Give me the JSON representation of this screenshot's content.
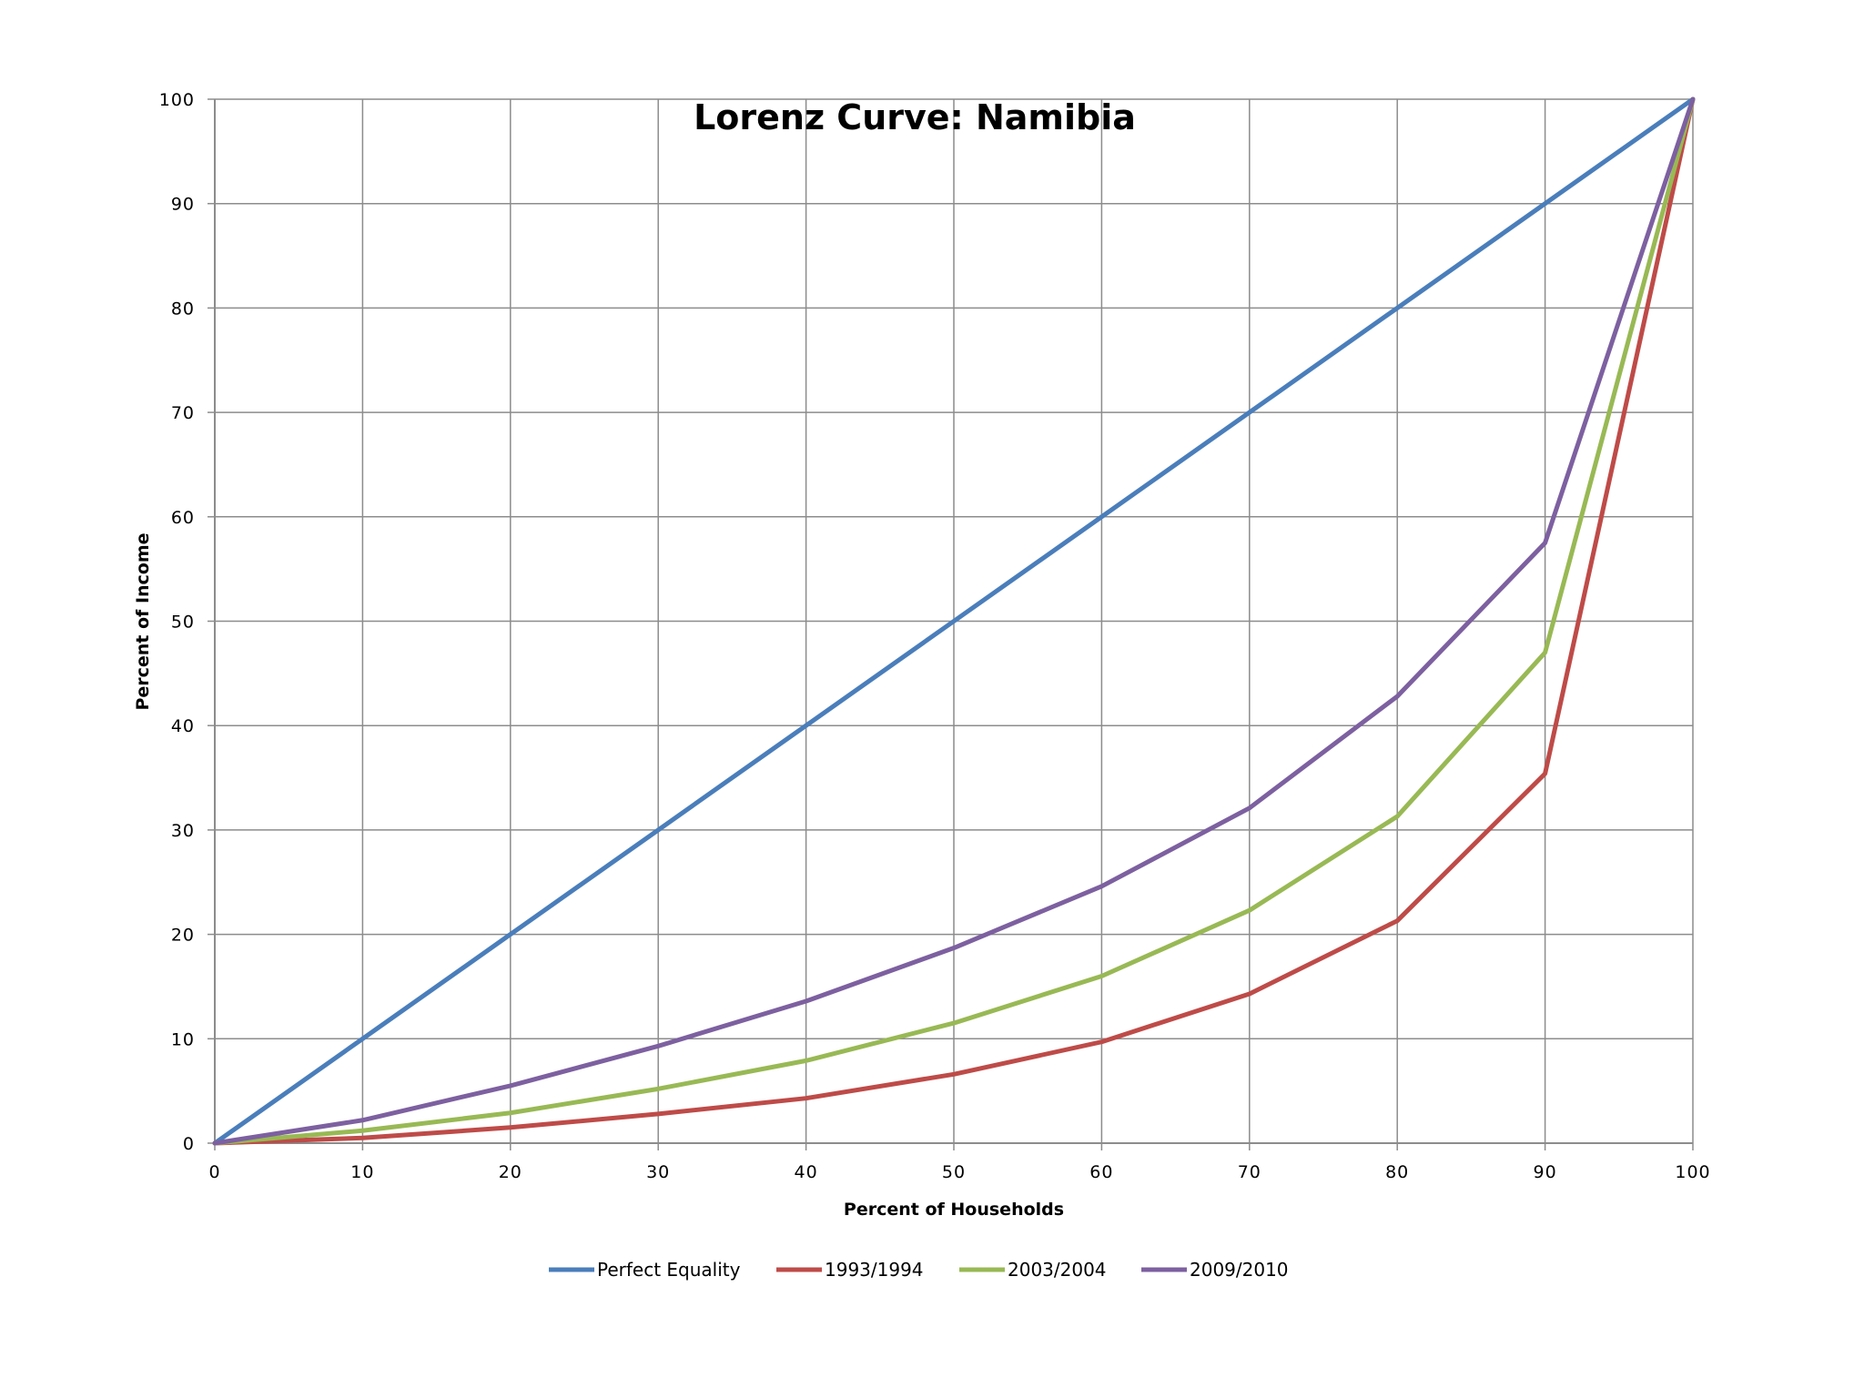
{
  "chart_data": {
    "type": "line",
    "title": "Lorenz Curve: Namibia",
    "xlabel": "Percent of Households",
    "ylabel": "Percent of Income",
    "xlim": [
      0,
      100
    ],
    "ylim": [
      0,
      100
    ],
    "x_ticks": [
      "0",
      "10",
      "20",
      "30",
      "40",
      "50",
      "60",
      "70",
      "80",
      "90",
      "100"
    ],
    "y_ticks": [
      "0",
      "10",
      "20",
      "30",
      "40",
      "50",
      "60",
      "70",
      "80",
      "90",
      "100"
    ],
    "grid": true,
    "legend_position": "bottom",
    "x": [
      0,
      10,
      20,
      30,
      40,
      50,
      60,
      70,
      80,
      90,
      100
    ],
    "series": [
      {
        "name": "Perfect Equality",
        "color": "#4a7ebb",
        "values": [
          0,
          10,
          20,
          30,
          40,
          50,
          60,
          70,
          80,
          90,
          100
        ]
      },
      {
        "name": "1993/1994",
        "color": "#be4b48",
        "values": [
          0,
          0.5,
          1.5,
          2.8,
          4.3,
          6.6,
          9.7,
          14.3,
          21.3,
          35.4,
          100
        ]
      },
      {
        "name": "2003/2004",
        "color": "#98b954",
        "values": [
          0,
          1.2,
          2.9,
          5.2,
          7.9,
          11.5,
          16.0,
          22.3,
          31.3,
          47.0,
          100
        ]
      },
      {
        "name": "2009/2010",
        "color": "#7d60a0",
        "values": [
          0,
          2.2,
          5.5,
          9.3,
          13.6,
          18.7,
          24.6,
          32.1,
          42.8,
          57.5,
          100
        ]
      }
    ]
  }
}
